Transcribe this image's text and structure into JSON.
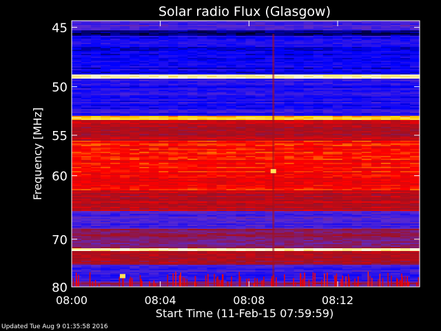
{
  "chart_data": {
    "type": "heatmap",
    "title": "Solar radio Flux (Glasgow)",
    "xlabel": "Start Time (11-Feb-15 07:59:59)",
    "ylabel": "Frequency [MHz]",
    "x_ticks": [
      "08:00",
      "08:04",
      "08:08",
      "08:12"
    ],
    "x_tick_minutes": [
      0,
      4,
      8,
      12
    ],
    "xlim_minutes": [
      0,
      15.7
    ],
    "y_ticks": [
      45,
      50,
      55,
      60,
      70,
      80
    ],
    "ylim": [
      44.5,
      80
    ],
    "y_scale": "reciprocal",
    "colormap": [
      "#000020",
      "#0000ff",
      "#5a2ad0",
      "#a01020",
      "#ff0000",
      "#ffd000",
      "#ffffe0"
    ],
    "bands": [
      {
        "from": 44.5,
        "to": 45.2,
        "level": 0.3
      },
      {
        "from": 45.2,
        "to": 45.6,
        "level": 0.05
      },
      {
        "from": 45.6,
        "to": 48.8,
        "level": 0.18
      },
      {
        "from": 48.8,
        "to": 49.2,
        "level": 0.95
      },
      {
        "from": 49.2,
        "to": 52.8,
        "level": 0.22
      },
      {
        "from": 52.8,
        "to": 53.2,
        "level": 0.82
      },
      {
        "from": 53.2,
        "to": 55.5,
        "level": 0.55
      },
      {
        "from": 55.5,
        "to": 62.0,
        "level": 0.66
      },
      {
        "from": 62.0,
        "to": 65.0,
        "level": 0.55
      },
      {
        "from": 65.0,
        "to": 68.0,
        "level": 0.3
      },
      {
        "from": 68.0,
        "to": 71.5,
        "level": 0.45
      },
      {
        "from": 71.5,
        "to": 72.0,
        "level": 0.93
      },
      {
        "from": 72.0,
        "to": 75.0,
        "level": 0.5
      },
      {
        "from": 75.0,
        "to": 78.5,
        "level": 0.27
      },
      {
        "from": 78.5,
        "to": 80.0,
        "level": 0.42
      }
    ],
    "features": [
      {
        "minute": 9.1,
        "freq_from": 45.5,
        "freq_to": 80,
        "kind": "vertical-stripe"
      },
      {
        "minute": 9.1,
        "freq": 59.4,
        "kind": "burst"
      },
      {
        "minute": 2.3,
        "freq": 77.5,
        "kind": "burst"
      }
    ]
  },
  "footer": {
    "updated": "Updated Tue Aug  9 01:35:58 2016"
  }
}
